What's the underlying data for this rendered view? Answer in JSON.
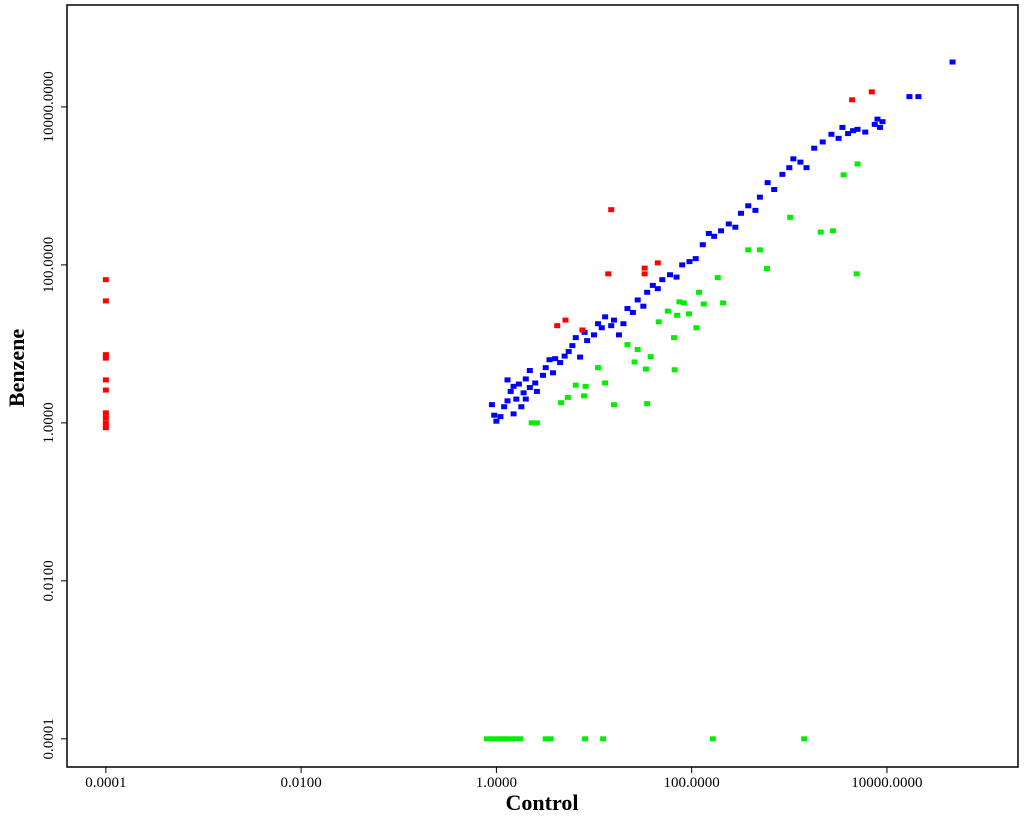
{
  "chart_data": {
    "type": "scatter",
    "x_label": "Control",
    "y_label": "Benzene",
    "xscale": "log",
    "yscale": "log",
    "xlim": [
      4e-05,
      220000
    ],
    "ylim": [
      4.4e-05,
      195000
    ],
    "xticks": [
      {
        "value": 0.0001,
        "label": "0.0001"
      },
      {
        "value": 0.01,
        "label": "0.0100"
      },
      {
        "value": 1,
        "label": "1.0000"
      },
      {
        "value": 100,
        "label": "100.0000"
      },
      {
        "value": 10000,
        "label": "10000.0000"
      }
    ],
    "yticks": [
      {
        "value": 0.0001,
        "label": "0.0001"
      },
      {
        "value": 0.01,
        "label": "0.0100"
      },
      {
        "value": 1,
        "label": "1.0000"
      },
      {
        "value": 100,
        "label": "100.0000"
      },
      {
        "value": 10000,
        "label": "10000.0000"
      }
    ],
    "series": [
      {
        "color": "#0000ff",
        "x": [
          0.9,
          0.95,
          1.0,
          1.1,
          1.2,
          1.3,
          1.3,
          1.4,
          1.5,
          1.5,
          1.6,
          1.7,
          1.8,
          1.9,
          2.0,
          2.0,
          2.2,
          2.2,
          2.5,
          2.6,
          3.0,
          3.2,
          3.5,
          3.8,
          4.0,
          4.5,
          5.0,
          5.5,
          6.0,
          6.5,
          7.2,
          8,
          8.5,
          10,
          11,
          12,
          13,
          15,
          16,
          18,
          20,
          22,
          25,
          28,
          32,
          35,
          40,
          45,
          50,
          60,
          70,
          80,
          95,
          110,
          130,
          150,
          170,
          200,
          240,
          280,
          320,
          380,
          450,
          500,
          600,
          700,
          850,
          1000,
          1100,
          1300,
          1500,
          1800,
          2200,
          2700,
          3200,
          3500,
          4000,
          4500,
          5000,
          6000,
          7500,
          8000,
          8500,
          9000,
          17000,
          21000,
          47000
        ],
        "y": [
          1.7,
          1.25,
          1.05,
          1.2,
          1.6,
          1.9,
          3.5,
          2.5,
          1.3,
          2.9,
          2.0,
          3.1,
          1.6,
          2.4,
          2.0,
          3.6,
          4.6,
          2.8,
          3.2,
          2.5,
          4.0,
          5.0,
          6.3,
          4.3,
          6.5,
          5.8,
          7.0,
          8.0,
          9.5,
          12,
          6.8,
          14,
          11,
          13,
          18,
          16,
          22,
          17,
          20,
          13,
          18,
          28,
          25,
          36,
          30,
          45,
          55,
          50,
          65,
          75,
          70,
          100,
          110,
          120,
          180,
          250,
          230,
          270,
          330,
          300,
          450,
          560,
          490,
          720,
          1100,
          900,
          1400,
          1700,
          2200,
          2000,
          1700,
          3000,
          3600,
          4500,
          4000,
          5500,
          4600,
          5000,
          5200,
          4800,
          6000,
          7000,
          5500,
          6500,
          13500,
          13500,
          37000
        ]
      },
      {
        "color": "#ff0000",
        "x": [
          0.0001,
          0.0001,
          0.0001,
          0.0001,
          0.0001,
          0.0001,
          0.0001,
          0.0001,
          0.0001,
          0.0001,
          15,
          14,
          33,
          45,
          33,
          4.2,
          5.1,
          7.6,
          4400,
          7000
        ],
        "y": [
          65,
          35,
          7.3,
          6.6,
          3.5,
          2.6,
          1.34,
          1.16,
          1.0,
          0.87,
          500,
          77,
          91,
          106,
          77,
          17,
          20,
          15,
          12300,
          15500
        ]
      },
      {
        "color": "#00ee00",
        "x": [
          0.8,
          0.9,
          1.0,
          1.1,
          1.2,
          1.3,
          1.45,
          1.6,
          1.75,
          3.2,
          3.6,
          8.1,
          12.4,
          165,
          1420,
          2.6,
          2.3,
          4.6,
          5.4,
          6.5,
          8.2,
          7.9,
          11,
          13,
          16,
          22,
          28,
          26,
          38,
          35,
          34,
          46,
          57,
          71,
          83,
          94,
          75,
          119,
          133,
          185,
          210,
          112,
          67,
          66,
          380,
          500,
          590,
          1020,
          2100,
          2800,
          3600,
          5000,
          4900
        ],
        "y": [
          0.0001,
          0.0001,
          0.0001,
          0.0001,
          0.0001,
          0.0001,
          0.0001,
          0.0001,
          0.0001,
          0.0001,
          0.0001,
          0.0001,
          0.0001,
          0.0001,
          0.0001,
          1.0,
          1.0,
          1.8,
          2.1,
          3.0,
          2.9,
          2.2,
          5.0,
          3.2,
          1.7,
          9.8,
          8.5,
          5.9,
          6.9,
          1.75,
          4.8,
          19,
          26,
          23,
          33,
          24,
          34,
          45,
          32,
          69,
          33,
          16,
          4.7,
          12,
          155,
          155,
          90,
          400,
          260,
          270,
          1380,
          1900,
          77
        ]
      }
    ]
  }
}
